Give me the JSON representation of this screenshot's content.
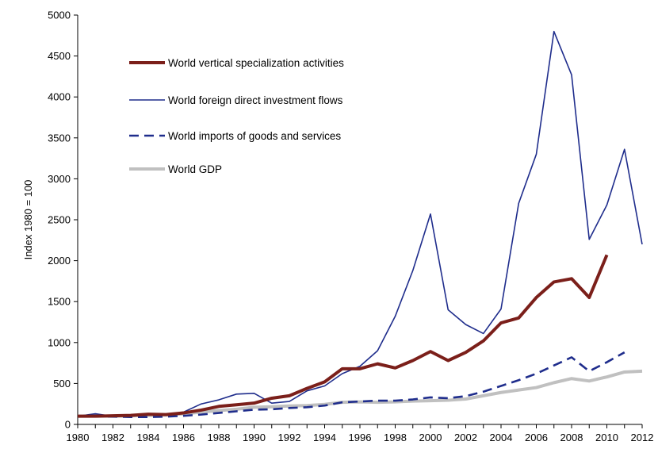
{
  "chart_data": {
    "type": "line",
    "ylabel": "Index 1980 = 100",
    "xlabel": "",
    "ylim": [
      0,
      5000
    ],
    "yticks": [
      0,
      500,
      1000,
      1500,
      2000,
      2500,
      3000,
      3500,
      4000,
      4500,
      5000
    ],
    "xlim": [
      1980,
      2012
    ],
    "xticks": [
      1980,
      1982,
      1984,
      1986,
      1988,
      1990,
      1992,
      1994,
      1996,
      1998,
      2000,
      2002,
      2004,
      2006,
      2008,
      2010,
      2012
    ],
    "grid": false,
    "legend": "upper-left",
    "series": [
      {
        "name": "World vertical specialization activities",
        "color": "#7b1f1a",
        "style": "solid-thick",
        "x": [
          1980,
          1981,
          1982,
          1983,
          1984,
          1985,
          1986,
          1987,
          1988,
          1989,
          1990,
          1991,
          1992,
          1993,
          1994,
          1995,
          1996,
          1997,
          1998,
          1999,
          2000,
          2001,
          2002,
          2003,
          2004,
          2005,
          2006,
          2007,
          2008,
          2009,
          2010
        ],
        "values": [
          100,
          100,
          105,
          110,
          125,
          120,
          140,
          175,
          220,
          240,
          260,
          320,
          350,
          440,
          520,
          680,
          680,
          740,
          690,
          780,
          890,
          780,
          880,
          1020,
          1240,
          1300,
          1550,
          1740,
          1780,
          1550,
          2070
        ]
      },
      {
        "name": "World foreign direct investment flows",
        "color": "#1f2d8c",
        "style": "solid-thin",
        "x": [
          1980,
          1981,
          1982,
          1983,
          1984,
          1985,
          1986,
          1987,
          1988,
          1989,
          1990,
          1991,
          1992,
          1993,
          1994,
          1995,
          1996,
          1997,
          1998,
          1999,
          2000,
          2001,
          2002,
          2003,
          2004,
          2005,
          2006,
          2007,
          2008,
          2009,
          2010,
          2011,
          2012
        ],
        "values": [
          100,
          130,
          100,
          100,
          115,
          110,
          150,
          250,
          300,
          370,
          380,
          260,
          280,
          410,
          470,
          620,
          710,
          900,
          1320,
          1880,
          2570,
          1400,
          1220,
          1110,
          1410,
          2700,
          3300,
          4800,
          4270,
          2260,
          2680,
          3360,
          2200
        ]
      },
      {
        "name": "World imports of goods and services",
        "color": "#1f2d8c",
        "style": "dashed",
        "x": [
          1980,
          1981,
          1982,
          1983,
          1984,
          1985,
          1986,
          1987,
          1988,
          1989,
          1990,
          1991,
          1992,
          1993,
          1994,
          1995,
          1996,
          1997,
          1998,
          1999,
          2000,
          2001,
          2002,
          2003,
          2004,
          2005,
          2006,
          2007,
          2008,
          2009,
          2010,
          2011
        ],
        "values": [
          100,
          100,
          95,
          90,
          90,
          95,
          105,
          120,
          140,
          160,
          180,
          185,
          200,
          210,
          230,
          270,
          280,
          290,
          290,
          305,
          330,
          320,
          345,
          400,
          470,
          540,
          620,
          720,
          820,
          650,
          760,
          880
        ]
      },
      {
        "name": "World GDP",
        "color": "#c0c0c0",
        "style": "solid-thick",
        "x": [
          1980,
          1981,
          1982,
          1983,
          1984,
          1985,
          1986,
          1987,
          1988,
          1989,
          1990,
          1991,
          1992,
          1993,
          1994,
          1995,
          1996,
          1997,
          1998,
          1999,
          2000,
          2001,
          2002,
          2003,
          2004,
          2005,
          2006,
          2007,
          2008,
          2009,
          2010,
          2011,
          2012
        ],
        "values": [
          100,
          102,
          100,
          105,
          110,
          115,
          130,
          150,
          170,
          185,
          210,
          215,
          225,
          230,
          245,
          270,
          275,
          270,
          275,
          285,
          290,
          295,
          310,
          350,
          390,
          420,
          450,
          510,
          560,
          530,
          580,
          640,
          650
        ]
      }
    ]
  }
}
